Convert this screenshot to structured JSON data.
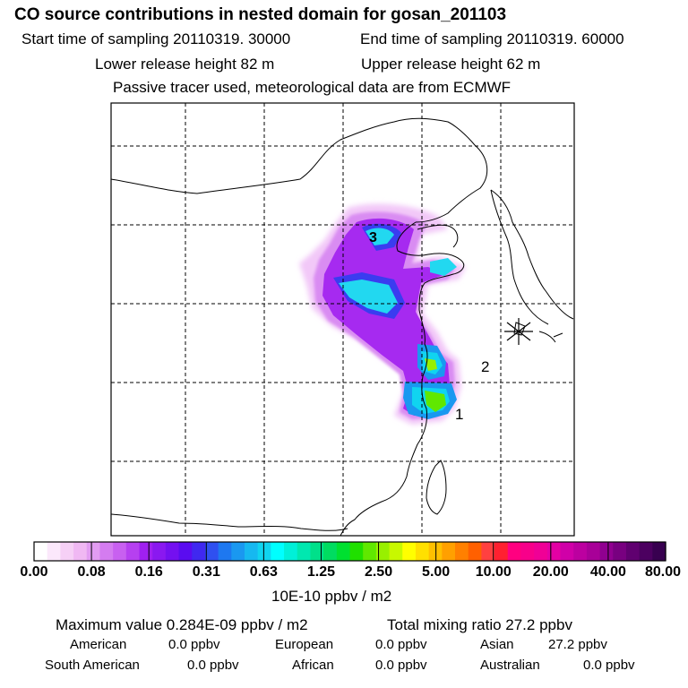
{
  "header": {
    "title": "CO  source contributions in nested domain for gosan_201103",
    "start_label": "Start time of sampling 20110319. 30000",
    "end_label": "End time of sampling 20110319. 60000",
    "lower_label": "Lower release height   82 m",
    "upper_label": "Upper release height   62 m",
    "note": "Passive tracer used, meteorological data are from ECMWF"
  },
  "map": {
    "markers": [
      "1",
      "2",
      "3"
    ],
    "receptor_symbol": "asterisk"
  },
  "colorbar": {
    "tick_labels": [
      "0.00",
      "0.08",
      "0.16",
      "0.31",
      "0.63",
      "1.25",
      "2.50",
      "5.00",
      "10.00",
      "20.00",
      "40.00",
      "80.00"
    ],
    "unit": "10E-10 ppbv / m2",
    "colors": [
      "#ffffff",
      "#fbe8fb",
      "#f6d0f6",
      "#f0b8f3",
      "#e29cf2",
      "#d47cf0",
      "#c860f0",
      "#b640f0",
      "#a020f0",
      "#8a18f0",
      "#7410f0",
      "#5a0cf0",
      "#4028f0",
      "#2f50f0",
      "#1e78f0",
      "#1a98f0",
      "#16b8f0",
      "#10d4f0",
      "#00ffff",
      "#00f0d8",
      "#00e8b0",
      "#00e08a",
      "#00dc60",
      "#00e030",
      "#20e000",
      "#60e800",
      "#98f000",
      "#c8f800",
      "#ffff00",
      "#ffe000",
      "#ffc000",
      "#ffa000",
      "#ff8000",
      "#ff6000",
      "#ff4040",
      "#ff2030",
      "#ff0080",
      "#f8008a",
      "#f00096",
      "#e400a4",
      "#d000a8",
      "#bc00a0",
      "#a80098",
      "#900090",
      "#780080",
      "#600070",
      "#4c0060",
      "#380050"
    ]
  },
  "footer": {
    "max_label": "Maximum value  0.284E-09 ppbv / m2",
    "total_label": "Total mixing ratio       27.2 ppbv",
    "regions": [
      {
        "name": "American",
        "value": "0.0 ppbv"
      },
      {
        "name": "European",
        "value": "0.0 ppbv"
      },
      {
        "name": "Asian",
        "value": "27.2 ppbv"
      },
      {
        "name": "South American",
        "value": "0.0 ppbv"
      },
      {
        "name": "African",
        "value": "0.0 ppbv"
      },
      {
        "name": "Australian",
        "value": "0.0 ppbv"
      }
    ]
  }
}
